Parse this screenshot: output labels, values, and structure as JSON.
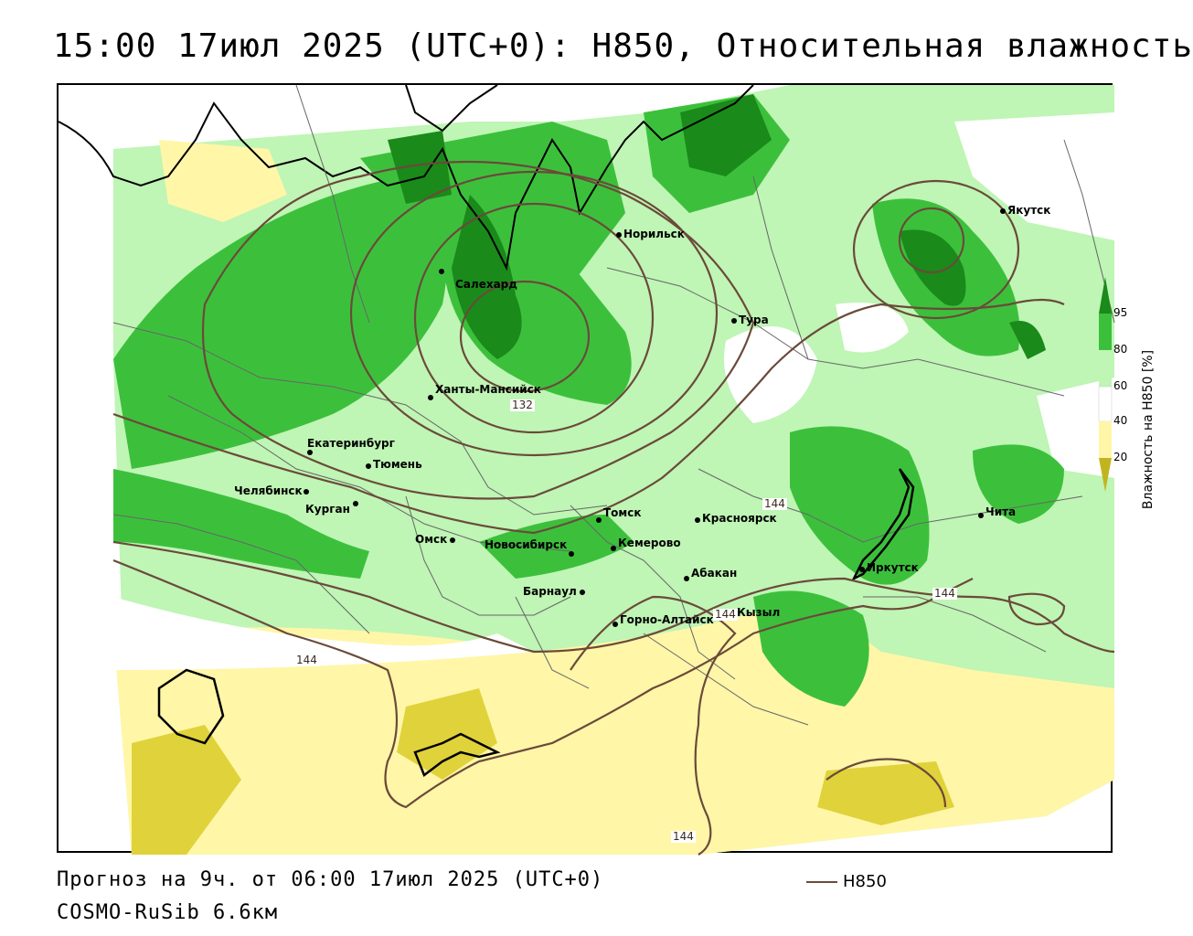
{
  "title": "15:00 17июл 2025 (UTC+0): H850, Относительная влажность",
  "footer": {
    "forecast": "Прогноз на 9ч. от 06:00 17июл 2025 (UTC+0)",
    "model": "COSMO-RuSib 6.6км"
  },
  "legend": {
    "label": "H850",
    "line_color": "#6b4a3a"
  },
  "colorbar": {
    "title": "Влажность на H850 [%]",
    "ticks": [
      "95",
      "80",
      "60",
      "40",
      "20"
    ],
    "colors": {
      "c95": "#1a8a1a",
      "c80": "#3cc03c",
      "c60": "#bff5b5",
      "c40": "#ffffff",
      "c20": "#fff6a8",
      "c0": "#e0d23a"
    }
  },
  "cities": [
    {
      "name": "Салехард"
    },
    {
      "name": "Норильск"
    },
    {
      "name": "Якутск"
    },
    {
      "name": "Тура"
    },
    {
      "name": "Ханты-Мансийск"
    },
    {
      "name": "Екатеринбург"
    },
    {
      "name": "Тюмень"
    },
    {
      "name": "Челябинск"
    },
    {
      "name": "Курган"
    },
    {
      "name": "Омск"
    },
    {
      "name": "Новосибирск"
    },
    {
      "name": "Томск"
    },
    {
      "name": "Кемерово"
    },
    {
      "name": "Красноярск"
    },
    {
      "name": "Барнаул"
    },
    {
      "name": "Абакан"
    },
    {
      "name": "Горно-Алтайск"
    },
    {
      "name": "Кызыл"
    },
    {
      "name": "Иркутск"
    },
    {
      "name": "Чита"
    }
  ],
  "contour_labels": [
    "132",
    "144",
    "144",
    "144",
    "144",
    "144"
  ]
}
